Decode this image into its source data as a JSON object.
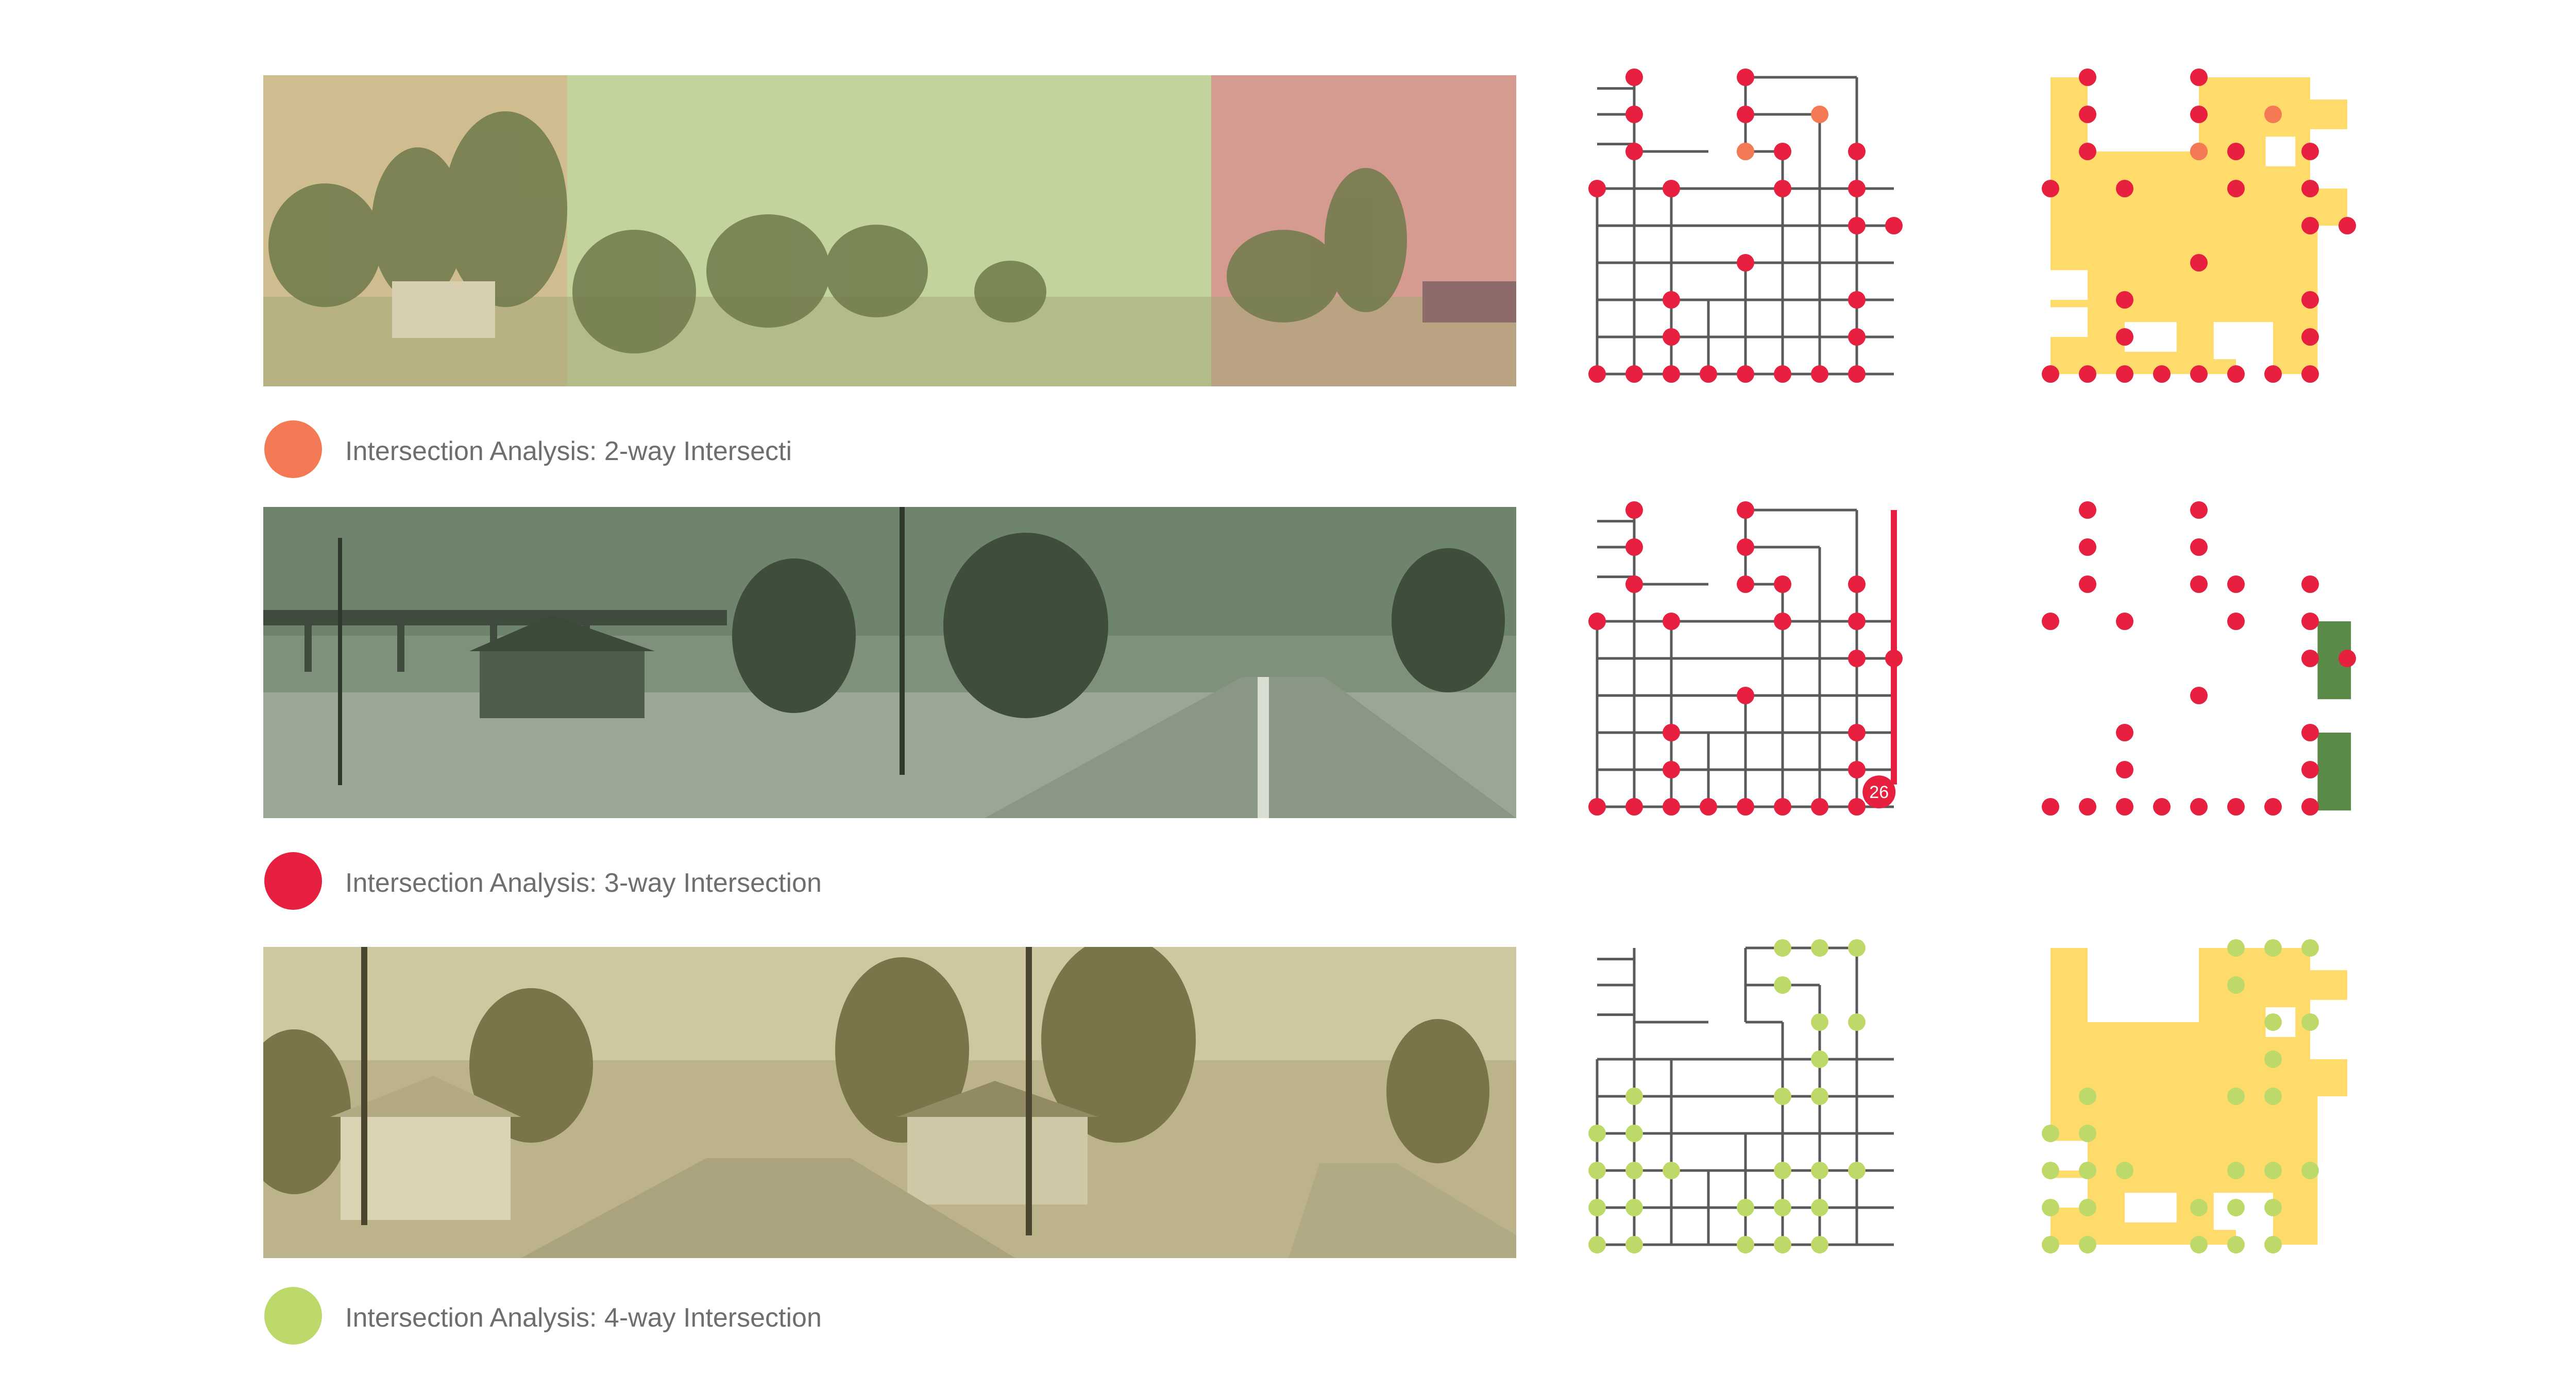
{
  "legend": [
    {
      "label": "Intersection Analysis: 2-way Intersecti",
      "color": "#f47a55"
    },
    {
      "label": "Intersection Analysis: 3-way Intersection",
      "color": "#e8203f"
    },
    {
      "label": "Intersection Analysis: 4-way Intersection",
      "color": "#bcd96a"
    }
  ],
  "photo_tints": {
    "row1": [
      "#c9b98a",
      "#c4d6a0",
      "#d99a93"
    ],
    "row2": "#5b7358",
    "row3": "#a39a66"
  },
  "map_colors": {
    "street": "#58595b",
    "block_fill": "#fedb6a",
    "highlight_green": "#5a8a48",
    "highlight_red_line": "#e8203f"
  },
  "badge": {
    "value": "26"
  },
  "icons": {
    "photo": "street-panorama-image",
    "dot": "intersection-dot-icon"
  }
}
